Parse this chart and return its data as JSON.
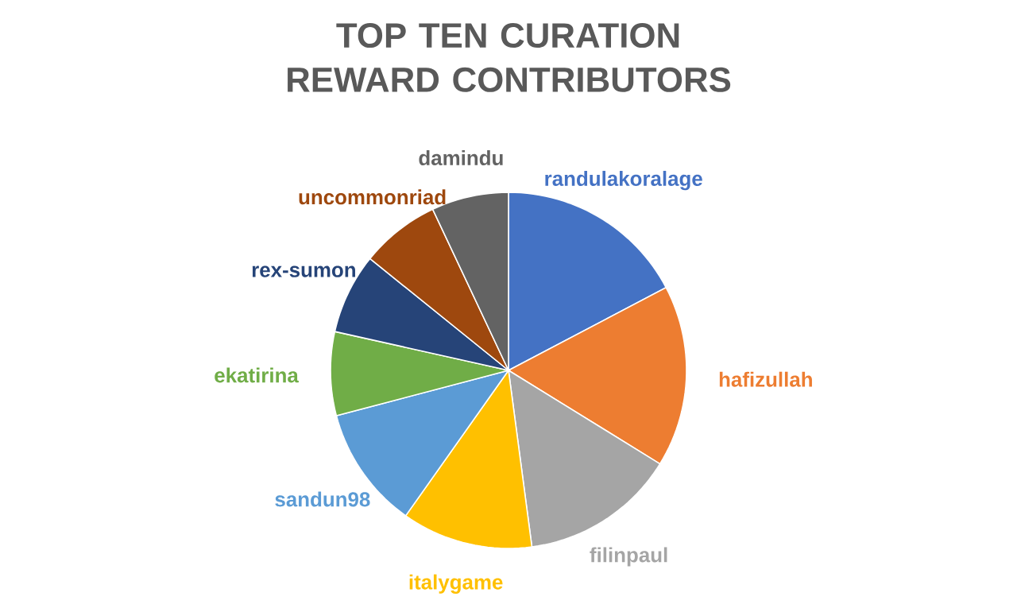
{
  "chart_data": {
    "type": "pie",
    "title": "TOP TEN CURATION REWARD CONTRIBUTORS",
    "categories": [
      "randulakoralage",
      "hafizullah",
      "filinpaul",
      "italygame",
      "sandun98",
      "ekatirina",
      "rex-sumon",
      "uncommonriad",
      "damindu"
    ],
    "values": [
      17.3,
      16.5,
      14.1,
      11.9,
      11.1,
      7.6,
      7.3,
      7.2,
      7.0
    ],
    "colors": [
      "#4472c4",
      "#ed7d31",
      "#a5a5a5",
      "#ffc000",
      "#5b9bd5",
      "#70ad47",
      "#264478",
      "#9e480e",
      "#636363"
    ]
  }
}
